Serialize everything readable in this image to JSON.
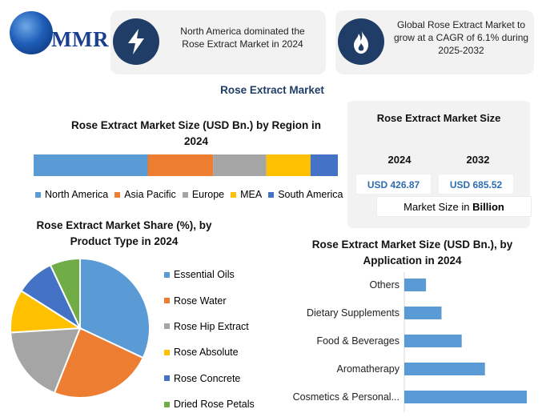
{
  "brand": {
    "name": "MMR"
  },
  "cards": [
    {
      "icon": "lightning-bolt-icon",
      "text_line1": "North America dominated the",
      "text_line2": "Rose Extract Market in 2024"
    },
    {
      "icon": "flame-icon",
      "text_line1": "Global Rose Extract Market to",
      "text_line2": "grow at a CAGR of 6.1% during",
      "text_line3": "2025-2032"
    }
  ],
  "main_title": "Rose Extract Market",
  "market_size": {
    "title": "Rose Extract Market Size",
    "years": [
      "2024",
      "2032"
    ],
    "values": [
      "USD 426.87",
      "USD 685.52"
    ],
    "footer_prefix": "Market Size in ",
    "footer_bold": "Billion"
  },
  "colors": {
    "blue": "#5b9bd5",
    "orange": "#ed7d31",
    "gray": "#a5a5a5",
    "yellow": "#ffc000",
    "darkblue": "#4472c4",
    "green": "#70ad47",
    "navy": "#1f3d66"
  },
  "chart_data": [
    {
      "type": "bar",
      "orientation": "horizontal-stacked",
      "title": "Rose Extract Market Size (USD Bn.) by Region in 2024",
      "series": [
        {
          "name": "North America",
          "value": 37.5,
          "color": "#5b9bd5"
        },
        {
          "name": "Asia Pacific",
          "value": 21.5,
          "color": "#ed7d31"
        },
        {
          "name": "Europe",
          "value": 17.5,
          "color": "#a5a5a5"
        },
        {
          "name": "MEA",
          "value": 14.5,
          "color": "#ffc000"
        },
        {
          "name": "South America",
          "value": 9.0,
          "color": "#4472c4"
        }
      ],
      "unit": "share of 2024 total (%)",
      "legend": "bottom"
    },
    {
      "type": "pie",
      "title": "Rose Extract Market Share (%), by Product Type in 2024",
      "slices": [
        {
          "name": "Essential Oils",
          "value": 32,
          "color": "#5b9bd5"
        },
        {
          "name": "Rose Water",
          "value": 24,
          "color": "#ed7d31"
        },
        {
          "name": "Rose Hip Extract",
          "value": 18,
          "color": "#a5a5a5"
        },
        {
          "name": "Rose Absolute",
          "value": 10,
          "color": "#ffc000"
        },
        {
          "name": "Rose Concrete",
          "value": 9,
          "color": "#4472c4"
        },
        {
          "name": "Dried Rose Petals",
          "value": 7,
          "color": "#70ad47"
        }
      ],
      "legend": "right"
    },
    {
      "type": "bar",
      "orientation": "horizontal",
      "title": "Rose Extract Market Size (USD Bn.), by Application in 2024",
      "categories": [
        "Others",
        "Dietary Supplements",
        "Food & Beverages",
        "Aromatherapy",
        "Cosmetics & Personal..."
      ],
      "values": [
        28,
        48,
        74,
        104,
        158
      ],
      "xlim": [
        0,
        160
      ],
      "color": "#5b9bd5",
      "grid": false
    }
  ]
}
